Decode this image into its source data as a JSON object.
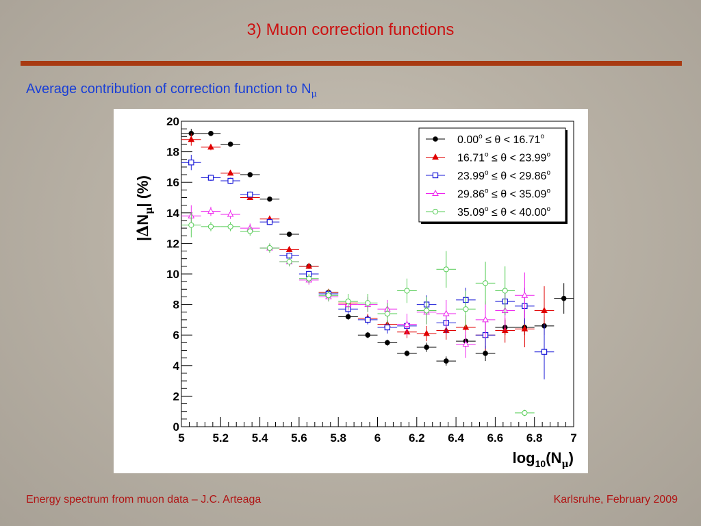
{
  "slide": {
    "title": "3) Muon correction functions",
    "subtitle": "Average contribution of correction function to N",
    "subtitle_sub": "μ",
    "footer_left": "Energy spectrum from muon data – J.C. Arteaga",
    "footer_right": "Karlsruhe,  February 2009"
  },
  "colors": {
    "title": "#cc1111",
    "rule": "#a83a12",
    "subtitle": "#1a3fd6",
    "footer": "#b01515"
  },
  "chart_data": {
    "type": "scatter",
    "ylabel_parts": [
      "|",
      "Δ",
      "N",
      "μ",
      "| (%)"
    ],
    "xlabel_parts": [
      "log",
      "10",
      "(N",
      "μ",
      ")"
    ],
    "xlim": [
      5,
      7
    ],
    "ylim": [
      0,
      20
    ],
    "xticks": [
      "5",
      "5.2",
      "5.4",
      "5.6",
      "5.8",
      "6",
      "6.2",
      "6.4",
      "6.6",
      "6.8",
      "7"
    ],
    "yticks": [
      "0",
      "2",
      "4",
      "6",
      "8",
      "10",
      "12",
      "14",
      "16",
      "18",
      "20"
    ],
    "grid": false,
    "legend_position": "top-right",
    "series": [
      {
        "name": "0.00° ≤ θ < 16.71°",
        "legend_parts": [
          "0.00",
          "o",
          " ≤ θ < 16.71",
          "o"
        ],
        "color": "#000000",
        "marker": "circle-filled",
        "x": [
          5.05,
          5.15,
          5.25,
          5.35,
          5.45,
          5.55,
          5.65,
          5.75,
          5.85,
          5.95,
          6.05,
          6.15,
          6.25,
          6.35,
          6.45,
          6.55,
          6.65,
          6.75,
          6.85,
          6.95
        ],
        "y": [
          19.2,
          19.2,
          18.5,
          16.5,
          14.9,
          12.6,
          10.5,
          8.8,
          7.2,
          6.0,
          5.5,
          4.8,
          5.2,
          4.3,
          5.6,
          4.8,
          6.5,
          6.5,
          6.6,
          8.4
        ],
        "yerr": [
          0.3,
          0.1,
          0.1,
          0.1,
          0.1,
          0.1,
          0.1,
          0.15,
          0.2,
          0.2,
          0.2,
          0.2,
          0.3,
          0.3,
          0.4,
          0.5,
          0.5,
          0.5,
          0.6,
          1.0
        ]
      },
      {
        "name": "16.71° ≤ θ < 23.99°",
        "legend_parts": [
          "16.71",
          "o",
          " ≤ θ < 23.99",
          "o"
        ],
        "color": "#e00000",
        "marker": "triangle-filled",
        "x": [
          5.05,
          5.15,
          5.25,
          5.35,
          5.45,
          5.55,
          5.65,
          5.75,
          5.85,
          5.95,
          6.05,
          6.15,
          6.25,
          6.35,
          6.45,
          6.55,
          6.65,
          6.75,
          6.85
        ],
        "y": [
          18.8,
          18.3,
          16.6,
          15.0,
          13.6,
          11.6,
          10.5,
          8.8,
          8.1,
          7.1,
          6.7,
          6.2,
          6.1,
          6.3,
          6.5,
          6.0,
          6.3,
          6.4,
          7.6
        ],
        "yerr": [
          0.4,
          0.2,
          0.1,
          0.1,
          0.1,
          0.1,
          0.1,
          0.2,
          0.2,
          0.3,
          0.3,
          0.4,
          0.5,
          0.6,
          0.8,
          1.0,
          0.8,
          1.2,
          1.6
        ]
      },
      {
        "name": "23.99° ≤ θ < 29.86°",
        "legend_parts": [
          "23.99",
          "o",
          " ≤ θ < 29.86",
          "o"
        ],
        "color": "#1a1ad8",
        "marker": "square-open",
        "x": [
          5.05,
          5.15,
          5.25,
          5.35,
          5.45,
          5.55,
          5.65,
          5.75,
          5.85,
          5.95,
          6.05,
          6.15,
          6.25,
          6.35,
          6.45,
          6.55,
          6.65,
          6.75,
          6.85
        ],
        "y": [
          17.3,
          16.3,
          16.1,
          15.2,
          13.4,
          11.2,
          10.0,
          8.7,
          7.7,
          7.0,
          6.5,
          6.6,
          8.0,
          6.8,
          8.3,
          6.0,
          8.2,
          7.9,
          4.9
        ],
        "yerr": [
          0.5,
          0.2,
          0.2,
          0.2,
          0.2,
          0.2,
          0.2,
          0.2,
          0.3,
          0.3,
          0.4,
          0.4,
          0.6,
          0.7,
          0.8,
          0.9,
          0.9,
          1.2,
          1.8
        ]
      },
      {
        "name": "29.86° ≤ θ < 35.09°",
        "legend_parts": [
          "29.86",
          "o",
          " ≤ θ < 35.09",
          "o"
        ],
        "color": "#ee22ee",
        "marker": "triangle-open",
        "x": [
          5.05,
          5.15,
          5.25,
          5.35,
          5.45,
          5.55,
          5.65,
          5.75,
          5.85,
          5.95,
          6.05,
          6.15,
          6.25,
          6.35,
          6.45,
          6.55,
          6.65,
          6.75
        ],
        "y": [
          13.8,
          14.1,
          13.9,
          13.0,
          11.7,
          10.8,
          9.6,
          8.5,
          8.0,
          8.0,
          7.7,
          6.7,
          7.5,
          7.4,
          5.4,
          7.0,
          7.6,
          8.6
        ],
        "yerr": [
          0.7,
          0.3,
          0.3,
          0.3,
          0.3,
          0.3,
          0.3,
          0.3,
          0.4,
          0.5,
          0.6,
          0.7,
          0.8,
          0.9,
          0.9,
          1.2,
          1.3,
          1.5
        ]
      },
      {
        "name": "35.09° ≤ θ < 40.00°",
        "legend_parts": [
          "35.09",
          "o",
          " ≤ θ < 40.00",
          "o"
        ],
        "color": "#55cc55",
        "marker": "circle-open",
        "x": [
          5.05,
          5.15,
          5.25,
          5.35,
          5.45,
          5.55,
          5.65,
          5.75,
          5.85,
          5.95,
          6.05,
          6.15,
          6.25,
          6.35,
          6.45,
          6.55,
          6.65,
          6.75
        ],
        "y": [
          13.2,
          13.1,
          13.1,
          12.8,
          11.7,
          10.8,
          9.7,
          8.6,
          8.2,
          8.1,
          7.4,
          8.9,
          7.6,
          10.3,
          7.7,
          9.4,
          8.9,
          0.9
        ],
        "yerr": [
          0.8,
          0.3,
          0.3,
          0.3,
          0.3,
          0.3,
          0.3,
          0.4,
          0.5,
          0.6,
          0.7,
          0.8,
          0.9,
          1.2,
          1.2,
          1.4,
          1.6,
          0.2
        ]
      }
    ]
  }
}
